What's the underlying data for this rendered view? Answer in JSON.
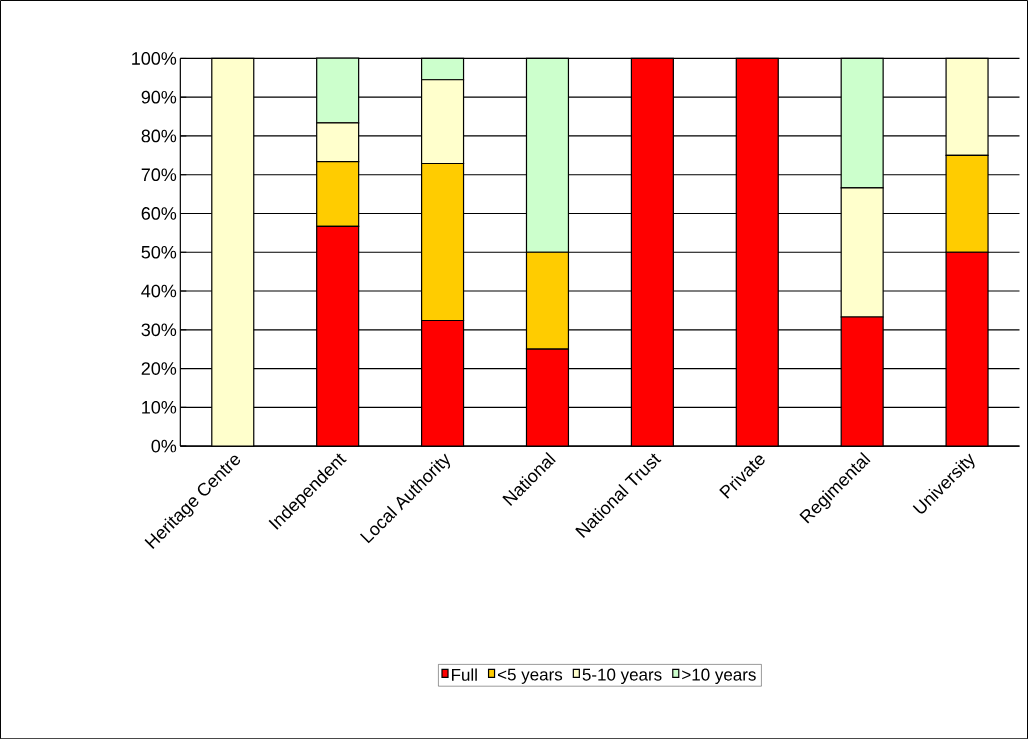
{
  "chart_data": {
    "type": "bar",
    "stacked": true,
    "categories": [
      "Heritage Centre",
      "Independent",
      "Local Authority",
      "National",
      "National Trust",
      "Private",
      "Regimental",
      "University"
    ],
    "series": [
      {
        "name": "Full",
        "color": "#ff0000",
        "values": [
          0,
          56.7,
          32.4,
          25,
          100,
          100,
          33.3,
          50
        ]
      },
      {
        "name": "<5 years",
        "color": "#ffcc00",
        "values": [
          0,
          16.7,
          40.5,
          25,
          0,
          0,
          0,
          25
        ]
      },
      {
        "name": "5-10 years",
        "color": "#ffffcc",
        "values": [
          100,
          10,
          21.6,
          0,
          0,
          0,
          33.3,
          25
        ]
      },
      {
        "name": ">10 years",
        "color": "#ccffcc",
        "values": [
          0,
          16.7,
          5.5,
          50,
          0,
          0,
          33.4,
          0
        ]
      }
    ],
    "ylim": [
      0,
      100
    ],
    "yticks": [
      {
        "value": 0,
        "label": "0%"
      },
      {
        "value": 10,
        "label": "10%"
      },
      {
        "value": 20,
        "label": "20%"
      },
      {
        "value": 30,
        "label": "30%"
      },
      {
        "value": 40,
        "label": "40%"
      },
      {
        "value": 50,
        "label": "50%"
      },
      {
        "value": 60,
        "label": "60%"
      },
      {
        "value": 70,
        "label": "70%"
      },
      {
        "value": 80,
        "label": "80%"
      },
      {
        "value": 90,
        "label": "90%"
      },
      {
        "value": 100,
        "label": "100%"
      }
    ],
    "grid": "y",
    "legend": "bottom"
  }
}
